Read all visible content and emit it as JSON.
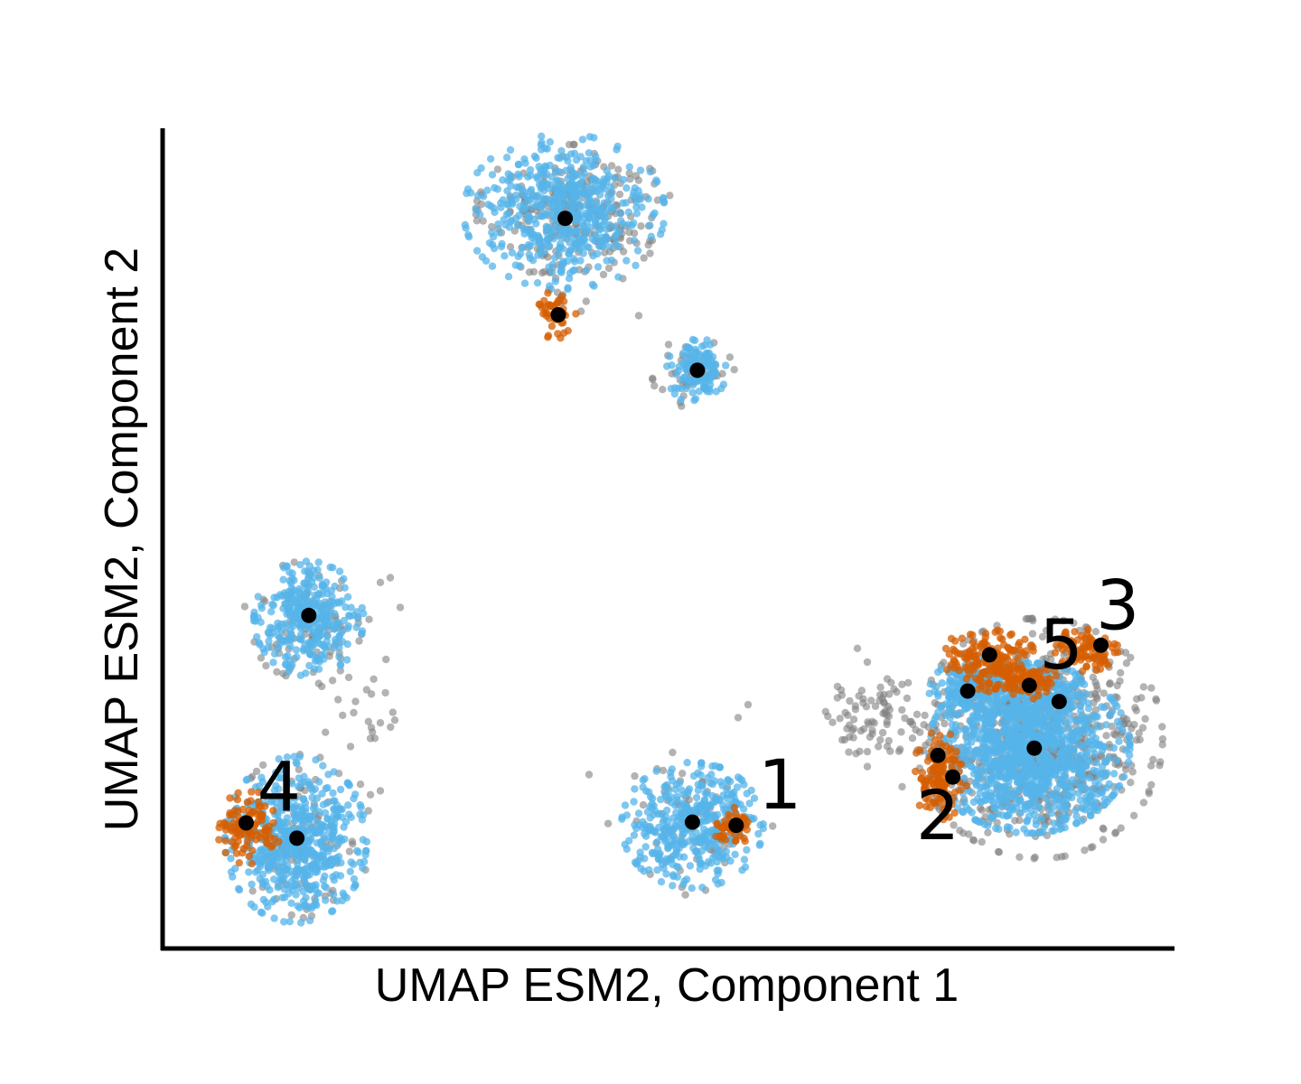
{
  "chart_data": {
    "type": "scatter",
    "title": "",
    "xlabel": "UMAP ESM2, Component 1",
    "ylabel": "UMAP ESM2, Component 2",
    "xlim": [
      0,
      100
    ],
    "ylim": [
      0,
      100
    ],
    "grid": false,
    "ticks": "none",
    "colors": {
      "background": "#808080",
      "highlight_blue": "#56B4E9",
      "highlight_orange": "#D55E00",
      "centroid": "#000000"
    },
    "blobs": [
      {
        "group": "gray",
        "cx": 40.5,
        "cy": 90.6,
        "sx": 4.3,
        "sy": 3.6,
        "n": 260
      },
      {
        "group": "blue",
        "cx": 39.5,
        "cy": 90.5,
        "sx": 4.4,
        "sy": 4.2,
        "n": 520
      },
      {
        "group": "gray",
        "cx": 39.2,
        "cy": 81.3,
        "sx": 1.2,
        "sy": 2.0,
        "n": 14
      },
      {
        "group": "orange",
        "cx": 38.6,
        "cy": 77.7,
        "sx": 0.9,
        "sy": 1.3,
        "n": 45
      },
      {
        "group": "gray",
        "cx": 52.5,
        "cy": 70.3,
        "sx": 1.8,
        "sy": 2.0,
        "n": 45
      },
      {
        "group": "blue",
        "cx": 52.8,
        "cy": 70.7,
        "sx": 1.3,
        "sy": 1.8,
        "n": 120
      },
      {
        "group": "gray",
        "cx": 13.5,
        "cy": 39.0,
        "sx": 2.8,
        "sy": 3.5,
        "n": 70
      },
      {
        "group": "blue",
        "cx": 13.8,
        "cy": 39.9,
        "sx": 2.4,
        "sy": 3.1,
        "n": 330
      },
      {
        "group": "gray",
        "cx": 19.5,
        "cy": 33.0,
        "sx": 3.0,
        "sy": 6.0,
        "n": 30
      },
      {
        "group": "gray",
        "cx": 12.9,
        "cy": 12.0,
        "sx": 3.0,
        "sy": 5.0,
        "n": 90
      },
      {
        "group": "blue",
        "cx": 12.5,
        "cy": 12.4,
        "sx": 3.1,
        "sy": 4.5,
        "n": 560
      },
      {
        "group": "orange",
        "cx": 7.8,
        "cy": 13.9,
        "sx": 1.4,
        "sy": 2.0,
        "n": 110
      },
      {
        "group": "gray",
        "cx": 52.2,
        "cy": 14.5,
        "sx": 3.6,
        "sy": 3.9,
        "n": 60
      },
      {
        "group": "blue",
        "cx": 52.4,
        "cy": 14.2,
        "sx": 3.1,
        "sy": 3.4,
        "n": 420
      },
      {
        "group": "orange",
        "cx": 56.5,
        "cy": 14.1,
        "sx": 0.9,
        "sy": 1.0,
        "n": 55
      },
      {
        "group": "gray",
        "cx": 71.0,
        "cy": 27.5,
        "sx": 2.8,
        "sy": 2.2,
        "n": 85
      },
      {
        "group": "gray",
        "cx": 87.3,
        "cy": 25.0,
        "sx": 5.4,
        "sy": 6.5,
        "n": 750
      },
      {
        "group": "blue",
        "cx": 86.3,
        "cy": 23.8,
        "sx": 4.4,
        "sy": 4.6,
        "n": 1150
      },
      {
        "group": "blue",
        "cx": 80.6,
        "cy": 30.9,
        "sx": 1.9,
        "sy": 1.7,
        "n": 170
      },
      {
        "group": "blue",
        "cx": 89.0,
        "cy": 30.3,
        "sx": 1.4,
        "sy": 1.3,
        "n": 60
      },
      {
        "group": "orange",
        "cx": 82.1,
        "cy": 35.3,
        "sx": 2.1,
        "sy": 1.4,
        "n": 130
      },
      {
        "group": "orange",
        "cx": 85.1,
        "cy": 32.1,
        "sx": 2.0,
        "sy": 1.0,
        "n": 110
      },
      {
        "group": "orange",
        "cx": 92.0,
        "cy": 36.1,
        "sx": 1.4,
        "sy": 1.2,
        "n": 90
      },
      {
        "group": "orange",
        "cx": 77.3,
        "cy": 20.4,
        "sx": 1.2,
        "sy": 2.4,
        "n": 120
      }
    ],
    "stray_points": [
      [
        36,
        83.0
      ],
      [
        38,
        83.1
      ],
      [
        41,
        83.3
      ],
      [
        44,
        83.5
      ],
      [
        45.4,
        82.2
      ],
      [
        47,
        77.6
      ],
      [
        50,
        74.0
      ],
      [
        58,
        29.2
      ],
      [
        57,
        27.6
      ],
      [
        42,
        20.5
      ],
      [
        21,
        44.4
      ],
      [
        22,
        45.0
      ],
      [
        23,
        41.3
      ],
      [
        18.5,
        29.6
      ],
      [
        19.8,
        27.1
      ],
      [
        20.2,
        25.8
      ],
      [
        20,
        25.0
      ],
      [
        18,
        24.0
      ],
      [
        19,
        19.3
      ],
      [
        20,
        18.0
      ],
      [
        21,
        18.5
      ],
      [
        19.8,
        16.0
      ],
      [
        69,
        36.2
      ],
      [
        70,
        34.5
      ],
      [
        72,
        32.4
      ],
      [
        74,
        30.0
      ],
      [
        75,
        28.0
      ],
      [
        72,
        24.0
      ],
      [
        70.5,
        26.0
      ],
      [
        66.5,
        27.0
      ],
      [
        73.5,
        19.0
      ],
      [
        70,
        21.5
      ]
    ],
    "centroids": [
      {
        "x": 39.6,
        "y": 89.7
      },
      {
        "x": 38.9,
        "y": 77.7
      },
      {
        "x": 52.9,
        "y": 70.8
      },
      {
        "x": 13.8,
        "y": 40.3
      },
      {
        "x": 7.5,
        "y": 14.5
      },
      {
        "x": 12.6,
        "y": 12.6
      },
      {
        "x": 52.4,
        "y": 14.6
      },
      {
        "x": 56.8,
        "y": 14.2
      },
      {
        "x": 77.1,
        "y": 22.9
      },
      {
        "x": 78.6,
        "y": 20.2
      },
      {
        "x": 82.3,
        "y": 35.4
      },
      {
        "x": 80.1,
        "y": 30.9
      },
      {
        "x": 86.3,
        "y": 31.6
      },
      {
        "x": 89.3,
        "y": 29.6
      },
      {
        "x": 86.8,
        "y": 23.8
      },
      {
        "x": 93.5,
        "y": 36.6
      }
    ],
    "annotations": [
      {
        "text": "1",
        "x": 61.2,
        "y": 16.3,
        "anchor": "middle"
      },
      {
        "text": "2",
        "x": 77.1,
        "y": 12.5,
        "anchor": "middle"
      },
      {
        "text": "3",
        "x": 95.2,
        "y": 38.6,
        "anchor": "middle"
      },
      {
        "text": "4",
        "x": 10.8,
        "y": 16.0,
        "anchor": "middle"
      },
      {
        "text": "5",
        "x": 89.5,
        "y": 33.7,
        "anchor": "middle"
      }
    ]
  }
}
